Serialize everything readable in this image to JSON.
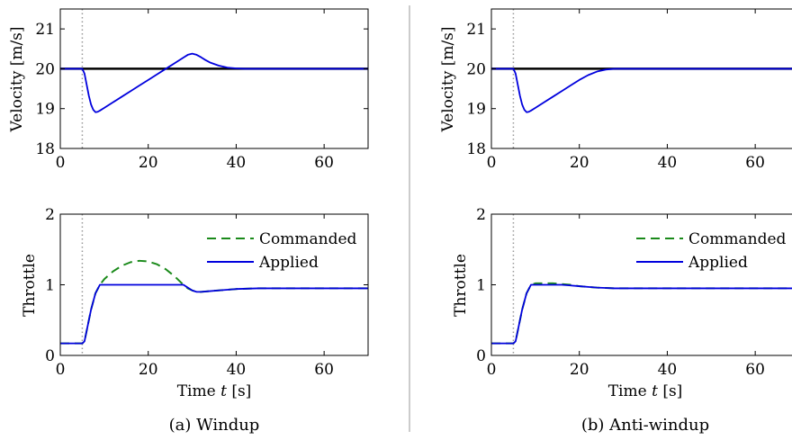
{
  "panels": [
    {
      "caption": "(a) Windup",
      "top": {
        "ylabel": "Velocity [m/s]",
        "xlim": [
          0,
          70
        ],
        "ylim": [
          18,
          21.5
        ],
        "xticks": [
          0,
          20,
          40,
          60
        ],
        "yticks": [
          18,
          19,
          20,
          21
        ],
        "xtick_labels": [
          "0",
          "20",
          "40",
          "60"
        ],
        "ytick_labels": [
          "18",
          "19",
          "20",
          "21"
        ]
      },
      "bottom": {
        "ylabel": "Throttle",
        "xlabel_prefix": "Time",
        "xlabel_var": "t",
        "xlabel_unit": "[s]",
        "xlim": [
          0,
          70
        ],
        "ylim": [
          0,
          2
        ],
        "xticks": [
          0,
          20,
          40,
          60
        ],
        "yticks": [
          0,
          1,
          2
        ],
        "xtick_labels": [
          "0",
          "20",
          "40",
          "60"
        ],
        "ytick_labels": [
          "0",
          "1",
          "2"
        ],
        "legend": [
          "Commanded",
          "Applied"
        ]
      }
    },
    {
      "caption": "(b) Anti-windup",
      "top": {
        "ylabel": "Velocity [m/s]",
        "xlim": [
          0,
          70
        ],
        "ylim": [
          18,
          21.5
        ],
        "xticks": [
          0,
          20,
          40,
          60
        ],
        "yticks": [
          18,
          19,
          20,
          21
        ],
        "xtick_labels": [
          "0",
          "20",
          "40",
          "60"
        ],
        "ytick_labels": [
          "18",
          "19",
          "20",
          "21"
        ]
      },
      "bottom": {
        "ylabel": "Throttle",
        "xlabel_prefix": "Time",
        "xlabel_var": "t",
        "xlabel_unit": "[s]",
        "xlim": [
          0,
          70
        ],
        "ylim": [
          0,
          2
        ],
        "xticks": [
          0,
          20,
          40,
          60
        ],
        "yticks": [
          0,
          1,
          2
        ],
        "xtick_labels": [
          "0",
          "20",
          "40",
          "60"
        ],
        "ytick_labels": [
          "0",
          "1",
          "2"
        ],
        "legend": [
          "Commanded",
          "Applied"
        ]
      }
    }
  ],
  "colors": {
    "reference": "#000000",
    "applied": "#0000dd",
    "commanded": "#1a8a1a",
    "marker": "#999999"
  },
  "chart_data": [
    {
      "type": "line",
      "panel": "(a) Windup",
      "ylabel": "Velocity [m/s]",
      "xlim": [
        0,
        70
      ],
      "ylim": [
        18,
        21.5
      ],
      "grid": false,
      "event_line_x": 5,
      "reference": {
        "x": [
          0,
          70
        ],
        "y": [
          20,
          20
        ]
      },
      "series": [
        {
          "x": [
            0,
            5,
            5.5,
            6,
            6.5,
            7,
            7.5,
            8,
            8.5,
            9,
            10,
            12,
            14,
            16,
            18,
            20,
            22,
            24,
            26,
            28,
            29,
            30,
            31,
            32,
            33,
            34,
            36,
            38,
            40,
            42,
            45,
            50,
            60,
            70
          ],
          "y": [
            20,
            20,
            19.88,
            19.6,
            19.32,
            19.1,
            18.97,
            18.91,
            18.92,
            18.95,
            19.02,
            19.16,
            19.3,
            19.44,
            19.58,
            19.72,
            19.86,
            20.0,
            20.14,
            20.28,
            20.35,
            20.38,
            20.35,
            20.29,
            20.22,
            20.16,
            20.08,
            20.03,
            20.01,
            20.0,
            20.0,
            20.0,
            20.0,
            20.0
          ]
        }
      ]
    },
    {
      "type": "line",
      "panel": "(a) Windup",
      "ylabel": "Throttle",
      "xlabel": "Time t [s]",
      "xlim": [
        0,
        70
      ],
      "ylim": [
        0,
        2
      ],
      "grid": false,
      "event_line_x": 5,
      "legend_position": "top-right",
      "series": [
        {
          "name": "Commanded",
          "x": [
            0,
            5,
            5.5,
            6,
            7,
            8,
            9,
            10,
            12,
            14,
            16,
            18,
            20,
            22,
            24,
            26,
            27,
            28,
            29,
            30,
            31,
            32,
            34,
            36,
            38,
            40,
            45,
            50,
            60,
            70
          ],
          "y": [
            0.17,
            0.17,
            0.2,
            0.35,
            0.65,
            0.88,
            1.0,
            1.08,
            1.19,
            1.27,
            1.32,
            1.34,
            1.33,
            1.29,
            1.22,
            1.12,
            1.06,
            1.0,
            0.95,
            0.92,
            0.9,
            0.9,
            0.91,
            0.92,
            0.93,
            0.94,
            0.95,
            0.95,
            0.95,
            0.95
          ]
        },
        {
          "name": "Applied",
          "x": [
            0,
            5,
            5.5,
            6,
            7,
            8,
            9,
            10,
            20,
            28,
            29,
            30,
            31,
            32,
            34,
            36,
            38,
            40,
            45,
            50,
            60,
            70
          ],
          "y": [
            0.17,
            0.17,
            0.2,
            0.35,
            0.65,
            0.88,
            1.0,
            1.0,
            1.0,
            1.0,
            0.96,
            0.92,
            0.9,
            0.9,
            0.91,
            0.92,
            0.93,
            0.94,
            0.95,
            0.95,
            0.95,
            0.95
          ]
        }
      ]
    },
    {
      "type": "line",
      "panel": "(b) Anti-windup",
      "ylabel": "Velocity [m/s]",
      "xlim": [
        0,
        70
      ],
      "ylim": [
        18,
        21.5
      ],
      "grid": false,
      "event_line_x": 5,
      "reference": {
        "x": [
          0,
          70
        ],
        "y": [
          20,
          20
        ]
      },
      "series": [
        {
          "x": [
            0,
            5,
            5.5,
            6,
            6.5,
            7,
            7.5,
            8,
            8.5,
            9,
            10,
            12,
            14,
            16,
            18,
            20,
            22,
            24,
            26,
            28,
            30,
            35,
            40,
            50,
            60,
            70
          ],
          "y": [
            20,
            20,
            19.88,
            19.6,
            19.32,
            19.1,
            18.97,
            18.91,
            18.92,
            18.95,
            19.02,
            19.16,
            19.3,
            19.44,
            19.58,
            19.72,
            19.84,
            19.93,
            19.98,
            20.0,
            20.0,
            20.0,
            20.0,
            20.0,
            20.0,
            20.0
          ]
        }
      ]
    },
    {
      "type": "line",
      "panel": "(b) Anti-windup",
      "ylabel": "Throttle",
      "xlabel": "Time t [s]",
      "xlim": [
        0,
        70
      ],
      "ylim": [
        0,
        2
      ],
      "grid": false,
      "event_line_x": 5,
      "legend_position": "top-right",
      "series": [
        {
          "name": "Commanded",
          "x": [
            0,
            5,
            5.5,
            6,
            7,
            8,
            9,
            10,
            12,
            14,
            16,
            18,
            20,
            22,
            24,
            26,
            28,
            30,
            35,
            40,
            50,
            60,
            70
          ],
          "y": [
            0.17,
            0.17,
            0.2,
            0.35,
            0.65,
            0.88,
            1.0,
            1.02,
            1.02,
            1.02,
            1.01,
            1.0,
            0.98,
            0.97,
            0.96,
            0.955,
            0.95,
            0.95,
            0.95,
            0.95,
            0.95,
            0.95,
            0.95
          ]
        },
        {
          "name": "Applied",
          "x": [
            0,
            5,
            5.5,
            6,
            7,
            8,
            9,
            10,
            12,
            14,
            16,
            18,
            20,
            22,
            24,
            26,
            28,
            30,
            35,
            40,
            50,
            60,
            70
          ],
          "y": [
            0.17,
            0.17,
            0.2,
            0.35,
            0.65,
            0.88,
            1.0,
            1.0,
            1.0,
            1.0,
            1.0,
            0.99,
            0.98,
            0.97,
            0.96,
            0.955,
            0.95,
            0.95,
            0.95,
            0.95,
            0.95,
            0.95,
            0.95
          ]
        }
      ]
    }
  ]
}
